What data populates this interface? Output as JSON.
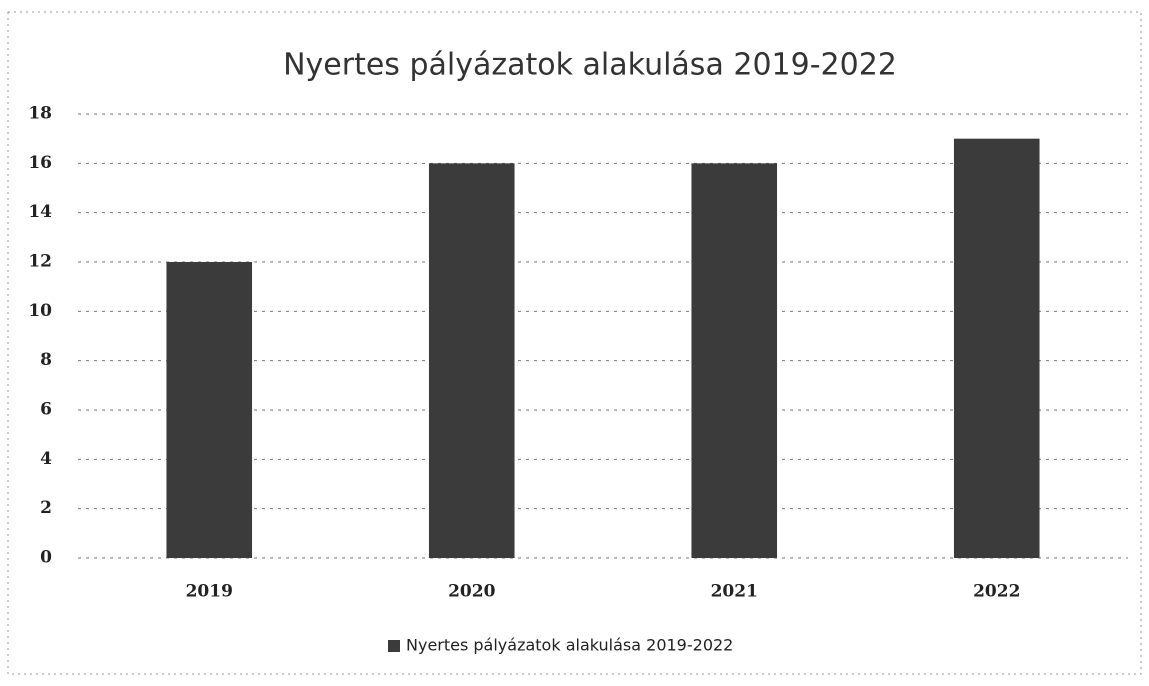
{
  "chart_data": {
    "type": "bar",
    "title": "Nyertes pályázatok alakulása 2019-2022",
    "categories": [
      "2019",
      "2020",
      "2021",
      "2022"
    ],
    "series": [
      {
        "name": "Nyertes pályázatok alakulása 2019-2022",
        "color": "#3b3b3b",
        "values": [
          12,
          16,
          16,
          17
        ]
      }
    ],
    "ylim": [
      0,
      18
    ],
    "yticks": [
      0,
      2,
      4,
      6,
      8,
      10,
      12,
      14,
      16,
      18
    ],
    "grid": true,
    "legend": "bottom"
  }
}
